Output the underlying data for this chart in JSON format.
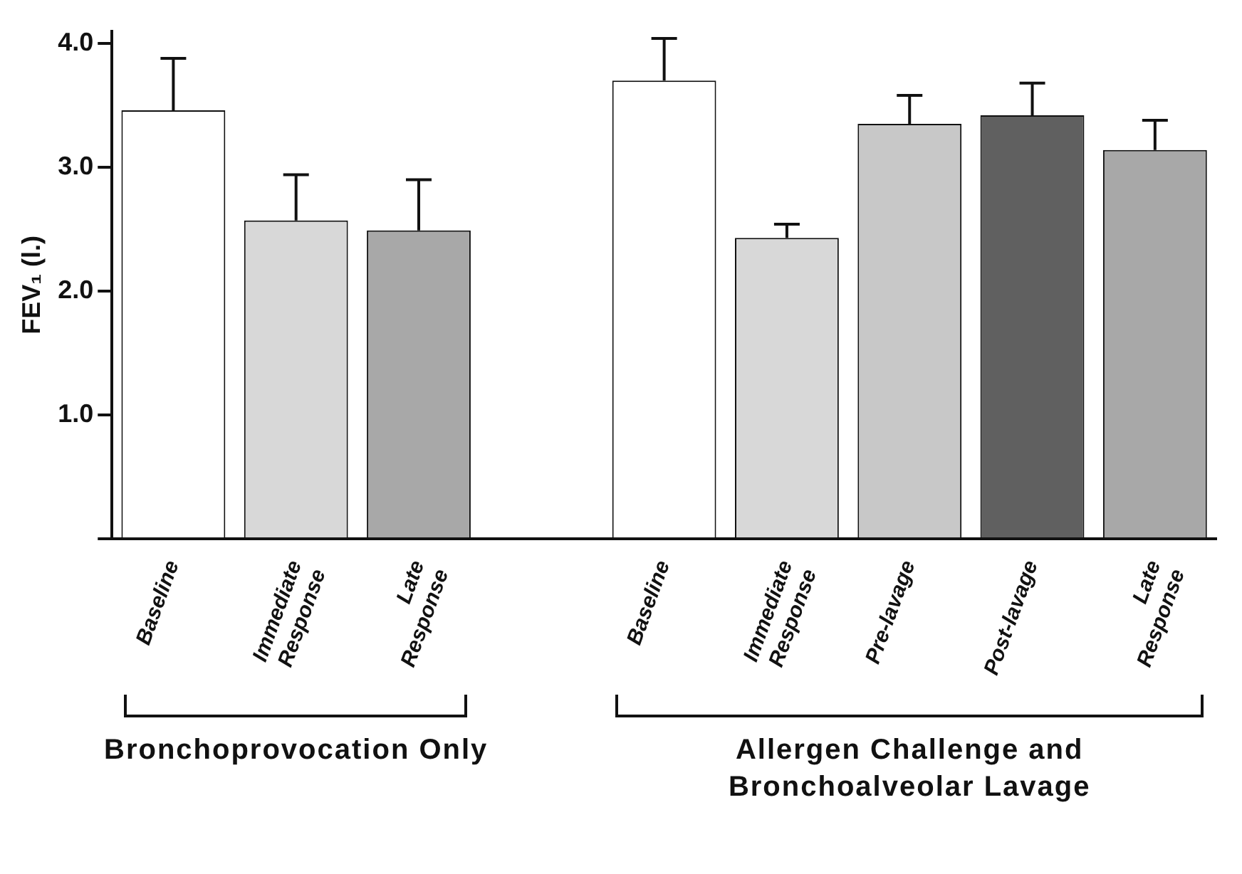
{
  "chart_data": {
    "type": "bar",
    "ylabel": "FEV₁ (l.)",
    "categories": [
      "Baseline",
      "Immediate Response",
      "Late Response",
      null,
      "Baseline",
      "Immediate Response",
      "Pre-lavage",
      "Post-lavage",
      "Late Response"
    ],
    "values": [
      3.46,
      2.57,
      2.49,
      null,
      3.7,
      2.43,
      3.35,
      3.42,
      3.14
    ],
    "errors": [
      [
        3.46,
        3.88
      ],
      [
        2.57,
        2.94
      ],
      [
        2.49,
        2.9
      ],
      null,
      [
        3.7,
        4.04
      ],
      [
        2.43,
        2.54
      ],
      [
        3.35,
        3.58
      ],
      [
        3.42,
        3.68
      ],
      [
        3.14,
        3.38
      ]
    ],
    "colors": [
      "#ffffff",
      "#d8d8d8",
      "#a8a8a8",
      "#ffffff",
      "#ffffff",
      "#d8d8d8",
      "#c8c8c8",
      "#606060",
      "#a8a8a8"
    ],
    "ylim": [
      0,
      4.1
    ],
    "yticks": [
      {
        "value": 0,
        "label": null
      },
      {
        "value": 1,
        "label": "1.0"
      },
      {
        "value": 2,
        "label": "2.0"
      },
      {
        "value": 3,
        "label": "3.0"
      },
      {
        "value": 4,
        "label": "4.0"
      }
    ],
    "annotations": [
      "Bronchoprovocation Only",
      "Allergen Challenge and Bronchoalveolar Lavage"
    ],
    "grid": false,
    "legend": false
  }
}
